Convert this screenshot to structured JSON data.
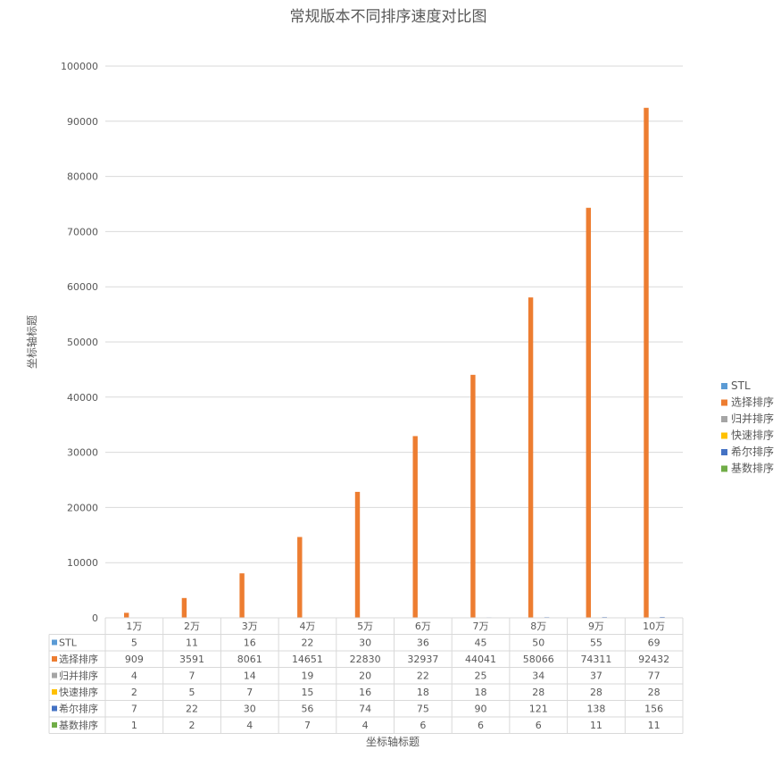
{
  "chart_data": {
    "type": "bar",
    "title": "常规版本不同排序速度对比图",
    "xlabel": "坐标轴标题",
    "ylabel": "坐标轴标题",
    "ylim": [
      0,
      100000
    ],
    "yticks": [
      "0",
      "10000",
      "20000",
      "30000",
      "40000",
      "50000",
      "60000",
      "70000",
      "80000",
      "90000",
      "100000"
    ],
    "grid": true,
    "legend_position": "right",
    "data_table": true,
    "categories": [
      "1万",
      "2万",
      "3万",
      "4万",
      "5万",
      "6万",
      "7万",
      "8万",
      "9万",
      "10万"
    ],
    "series": [
      {
        "name": "STL",
        "color": "#5B9BD5",
        "values": [
          5,
          11,
          16,
          22,
          30,
          36,
          45,
          50,
          55,
          69
        ]
      },
      {
        "name": "选择排序",
        "color": "#ED7D31",
        "values": [
          909,
          3591,
          8061,
          14651,
          22830,
          32937,
          44041,
          58066,
          74311,
          92432
        ]
      },
      {
        "name": "归并排序",
        "color": "#A5A5A5",
        "values": [
          4,
          7,
          14,
          19,
          20,
          22,
          25,
          34,
          37,
          77
        ]
      },
      {
        "name": "快速排序",
        "color": "#FFC000",
        "values": [
          2,
          5,
          7,
          15,
          16,
          18,
          18,
          28,
          28,
          28
        ]
      },
      {
        "name": "希尔排序",
        "color": "#4472C4",
        "values": [
          7,
          22,
          30,
          56,
          74,
          75,
          90,
          121,
          138,
          156
        ]
      },
      {
        "name": "基数排序",
        "color": "#70AD47",
        "values": [
          1,
          2,
          4,
          7,
          4,
          6,
          6,
          6,
          11,
          11
        ]
      }
    ]
  }
}
